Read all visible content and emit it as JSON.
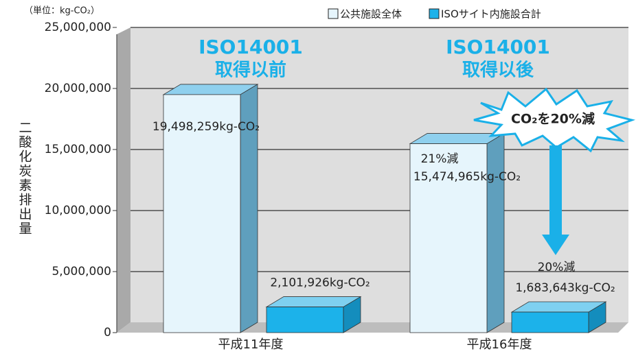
{
  "chart_data": {
    "type": "bar3d",
    "unit_label": "（単位：kg-CO₂）",
    "y_label": "二酸化炭素排出量",
    "categories": [
      "平成11年度",
      "平成16年度"
    ],
    "series": [
      {
        "name": "公共施設全体",
        "color": "#e6f5fc",
        "values": [
          19498259,
          15474965
        ],
        "value_labels": [
          "19,498,259kg-CO₂",
          "15,474,965kg-CO₂"
        ]
      },
      {
        "name": "ISOサイト内施設合計",
        "color": "#1cb2ea",
        "values": [
          2101926,
          1683643
        ],
        "value_labels": [
          "2,101,926kg-CO₂",
          "1,683,643kg-CO₂"
        ]
      }
    ],
    "ylim": [
      0,
      25000000
    ],
    "yticks": [
      0,
      {
        "value": 5000000,
        "label": "5,000,000"
      },
      {
        "value": 10000000,
        "label": "10,000,000"
      },
      {
        "value": 15000000,
        "label": "15,000,000"
      },
      {
        "value": 20000000,
        "label": "20,000,000"
      },
      {
        "value": 25000000,
        "label": "25,000,000"
      }
    ],
    "grid": true,
    "annotations": [
      "ISO14001",
      "取得以前",
      "ISO14001",
      "取得以後",
      "CO₂を20%減",
      "21%減",
      "20%減"
    ]
  }
}
